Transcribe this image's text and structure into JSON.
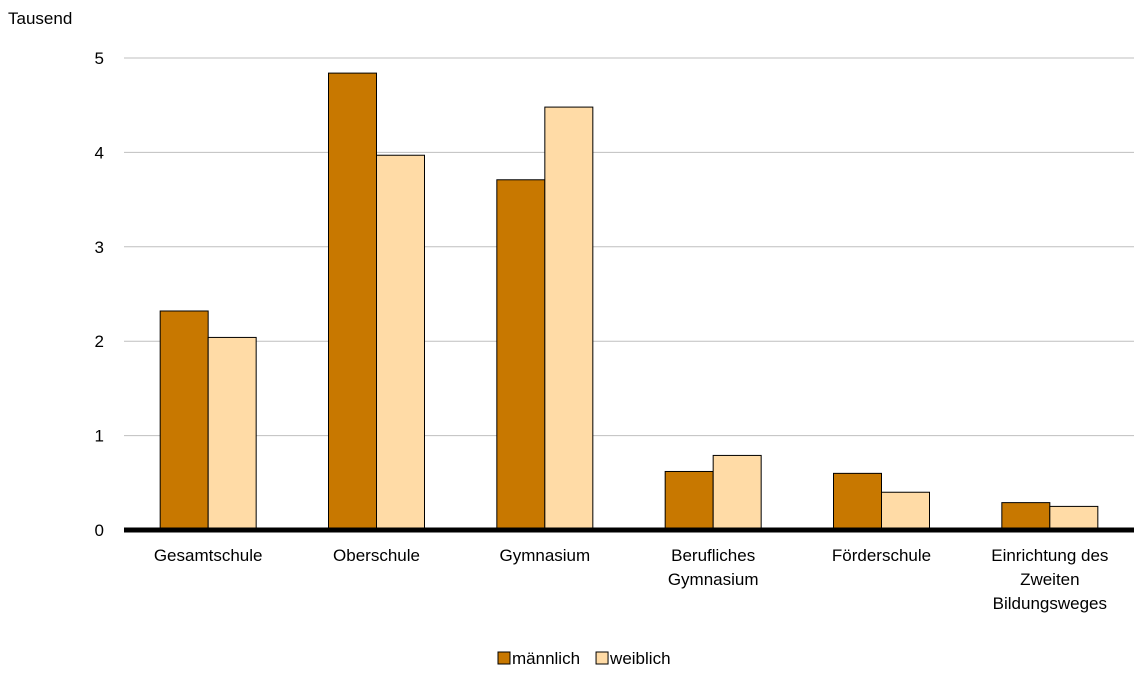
{
  "chart_data": {
    "type": "bar",
    "title": "",
    "xlabel": "",
    "ylabel": "Tausend",
    "ylim": [
      0,
      5
    ],
    "yticks": [
      0,
      1,
      2,
      3,
      4,
      5
    ],
    "grid": true,
    "legend_position": "bottom",
    "categories": [
      [
        "Gesamtschule"
      ],
      [
        "Oberschule"
      ],
      [
        "Gymnasium"
      ],
      [
        "Berufliches",
        "Gymnasium"
      ],
      [
        "Förderschule"
      ],
      [
        "Einrichtung des",
        "Zweiten",
        "Bildungsweges"
      ]
    ],
    "series": [
      {
        "name": "männlich",
        "color": "#C87800",
        "values": [
          2.32,
          4.84,
          3.71,
          0.62,
          0.6,
          0.29
        ]
      },
      {
        "name": "weiblich",
        "color": "#FFDBA6",
        "values": [
          2.04,
          3.97,
          4.48,
          0.79,
          0.4,
          0.25
        ]
      }
    ],
    "colors": {
      "axis": "#000000",
      "gridline": "#BFBFBF",
      "bar_outline": "#000000"
    }
  }
}
